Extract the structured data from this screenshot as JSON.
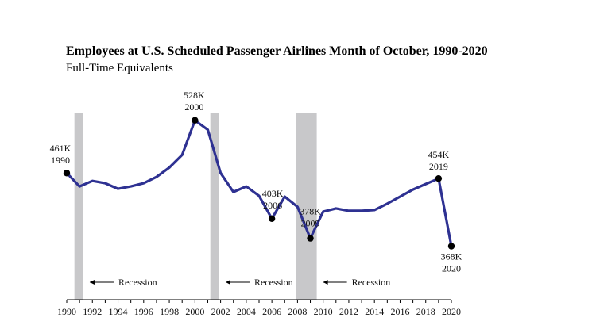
{
  "chart_data": {
    "type": "line",
    "title": "Employees at U.S. Scheduled Passenger Airlines Month of October, 1990-2020",
    "subtitle": "Full-Time Equivalents",
    "xlabel": "",
    "ylabel": "",
    "xlim": [
      1990,
      2020
    ],
    "ylim": [
      300,
      560
    ],
    "grid": false,
    "x_ticks": [
      "1990",
      "1992",
      "1994",
      "1996",
      "1998",
      "2000",
      "2002",
      "2004",
      "2006",
      "2008",
      "2010",
      "2012",
      "2014",
      "2016",
      "2018",
      "2020"
    ],
    "series": [
      {
        "color": "#2e3192",
        "x": [
          1990,
          1991,
          1992,
          1993,
          1994,
          1995,
          1996,
          1997,
          1998,
          1999,
          2000,
          2001,
          2002,
          2003,
          2004,
          2005,
          2006,
          2007,
          2008,
          2009,
          2010,
          2011,
          2012,
          2013,
          2014,
          2015,
          2016,
          2017,
          2018,
          2019,
          2020
        ],
        "y": [
          461,
          444,
          451,
          448,
          441,
          444,
          448,
          456,
          468,
          484,
          528,
          516,
          461,
          437,
          444,
          432,
          403,
          431,
          418,
          378,
          412,
          416,
          413,
          413,
          414,
          422,
          431,
          440,
          447,
          454,
          368
        ]
      }
    ],
    "highlight_points": [
      {
        "year": 1990,
        "label_value": "461K",
        "label_year": "1990"
      },
      {
        "year": 2000,
        "label_value": "528K",
        "label_year": "2000"
      },
      {
        "year": 2006,
        "label_value": "403K",
        "label_year": "2006"
      },
      {
        "year": 2009,
        "label_value": "378K",
        "label_year": "2009"
      },
      {
        "year": 2019,
        "label_value": "454K",
        "label_year": "2019"
      },
      {
        "year": 2020,
        "label_value": "368K",
        "label_year": "2020"
      }
    ],
    "recessions": [
      {
        "start": 1990.6,
        "end": 1991.3,
        "label": "Recession"
      },
      {
        "start": 2001.2,
        "end": 2001.9,
        "label": "Recession"
      },
      {
        "start": 2007.9,
        "end": 2009.5,
        "label": "Recession"
      }
    ],
    "colors": {
      "line": "#2e3192",
      "recession": "#c8c8ca",
      "point": "#000000"
    }
  }
}
